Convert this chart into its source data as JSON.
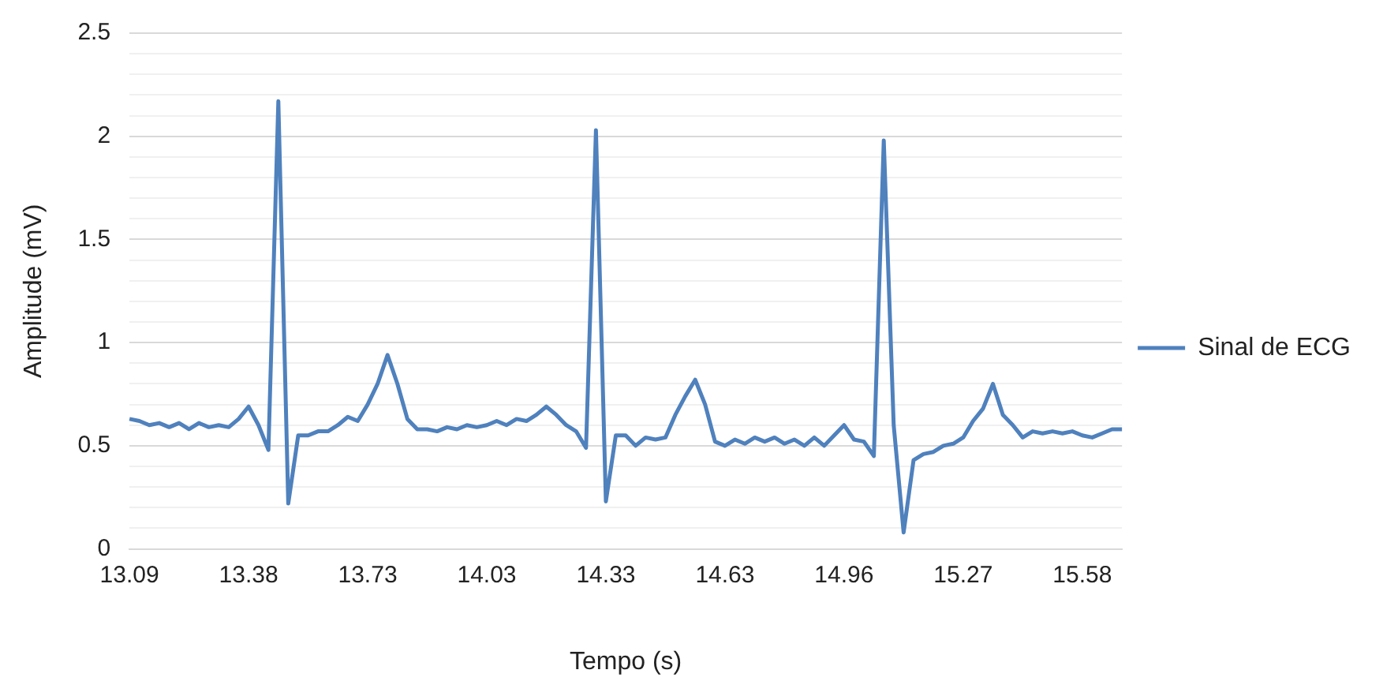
{
  "chart_data": {
    "type": "line",
    "xlabel": "Tempo (s)",
    "ylabel": "Amplitude (mV)",
    "categories": [
      "13.09",
      null,
      null,
      null,
      null,
      null,
      null,
      null,
      null,
      null,
      null,
      null,
      "13.38",
      null,
      null,
      null,
      null,
      null,
      null,
      null,
      null,
      null,
      null,
      null,
      "13.73",
      null,
      null,
      null,
      null,
      null,
      null,
      null,
      null,
      null,
      null,
      null,
      "14.03",
      null,
      null,
      null,
      null,
      null,
      null,
      null,
      null,
      null,
      null,
      null,
      "14.33",
      null,
      null,
      null,
      null,
      null,
      null,
      null,
      null,
      null,
      null,
      null,
      "14.63",
      null,
      null,
      null,
      null,
      null,
      null,
      null,
      null,
      null,
      null,
      null,
      "14.96",
      null,
      null,
      null,
      null,
      null,
      null,
      null,
      null,
      null,
      null,
      null,
      "15.27",
      null,
      null,
      null,
      null,
      null,
      null,
      null,
      null,
      null,
      null,
      null,
      "15.58",
      null,
      null,
      null,
      null
    ],
    "series": [
      {
        "name": "Sinal de ECG",
        "color": "#4f81bd",
        "values": [
          0.63,
          0.62,
          0.6,
          0.61,
          0.59,
          0.61,
          0.58,
          0.61,
          0.59,
          0.6,
          0.59,
          0.63,
          0.69,
          0.6,
          0.48,
          2.17,
          0.22,
          0.55,
          0.55,
          0.57,
          0.57,
          0.6,
          0.64,
          0.62,
          0.7,
          0.8,
          0.94,
          0.8,
          0.63,
          0.58,
          0.58,
          0.57,
          0.59,
          0.58,
          0.6,
          0.59,
          0.6,
          0.62,
          0.6,
          0.63,
          0.62,
          0.65,
          0.69,
          0.65,
          0.6,
          0.57,
          0.49,
          2.03,
          0.23,
          0.55,
          0.55,
          0.5,
          0.54,
          0.53,
          0.54,
          0.65,
          0.74,
          0.82,
          0.7,
          0.52,
          0.5,
          0.53,
          0.51,
          0.54,
          0.52,
          0.54,
          0.51,
          0.53,
          0.5,
          0.54,
          0.5,
          0.55,
          0.6,
          0.53,
          0.52,
          0.45,
          1.98,
          0.6,
          0.08,
          0.43,
          0.46,
          0.47,
          0.5,
          0.51,
          0.54,
          0.62,
          0.68,
          0.8,
          0.65,
          0.6,
          0.54,
          0.57,
          0.56,
          0.57,
          0.56,
          0.57,
          0.55,
          0.54,
          0.56,
          0.58,
          0.58
        ]
      }
    ],
    "ylim": [
      0,
      2.5
    ],
    "yticks": [
      0,
      {
        "value": 0.1,
        "label": null
      },
      {
        "value": 0.2,
        "label": null
      },
      {
        "value": 0.3,
        "label": null
      },
      {
        "value": 0.4,
        "label": null
      },
      0.5,
      {
        "value": 0.6,
        "label": null
      },
      {
        "value": 0.7,
        "label": null
      },
      {
        "value": 0.8,
        "label": null
      },
      {
        "value": 0.9,
        "label": null
      },
      1,
      {
        "value": 1.1,
        "label": null
      },
      {
        "value": 1.2,
        "label": null
      },
      {
        "value": 1.3,
        "label": null
      },
      {
        "value": 1.4,
        "label": null
      },
      1.5,
      {
        "value": 1.6,
        "label": null
      },
      {
        "value": 1.7,
        "label": null
      },
      {
        "value": 1.8,
        "label": null
      },
      {
        "value": 1.9,
        "label": null
      },
      2,
      {
        "value": 2.1,
        "label": null
      },
      {
        "value": 2.2,
        "label": null
      },
      {
        "value": 2.3,
        "label": null
      },
      {
        "value": 2.4,
        "label": null
      },
      2.5
    ],
    "grid": "y",
    "legend": "right",
    "marker": "none",
    "line_style": "solid"
  }
}
